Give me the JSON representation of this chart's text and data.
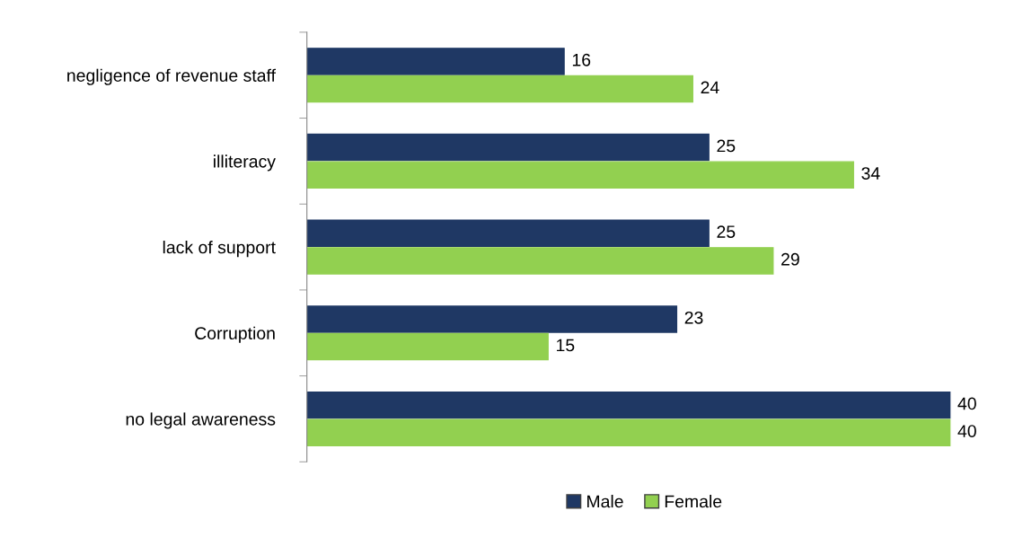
{
  "chart_data": {
    "type": "bar",
    "orientation": "horizontal",
    "categories": [
      "negligence of revenue staff",
      "illiteracy",
      "lack of support",
      "Corruption",
      "no legal awareness"
    ],
    "series": [
      {
        "name": "Male",
        "color": "#1f3864",
        "values": [
          16,
          25,
          25,
          23,
          40
        ]
      },
      {
        "name": "Female",
        "color": "#92d050",
        "values": [
          24,
          34,
          29,
          15,
          40
        ]
      }
    ],
    "data_labels": true,
    "legend": "bottom"
  }
}
